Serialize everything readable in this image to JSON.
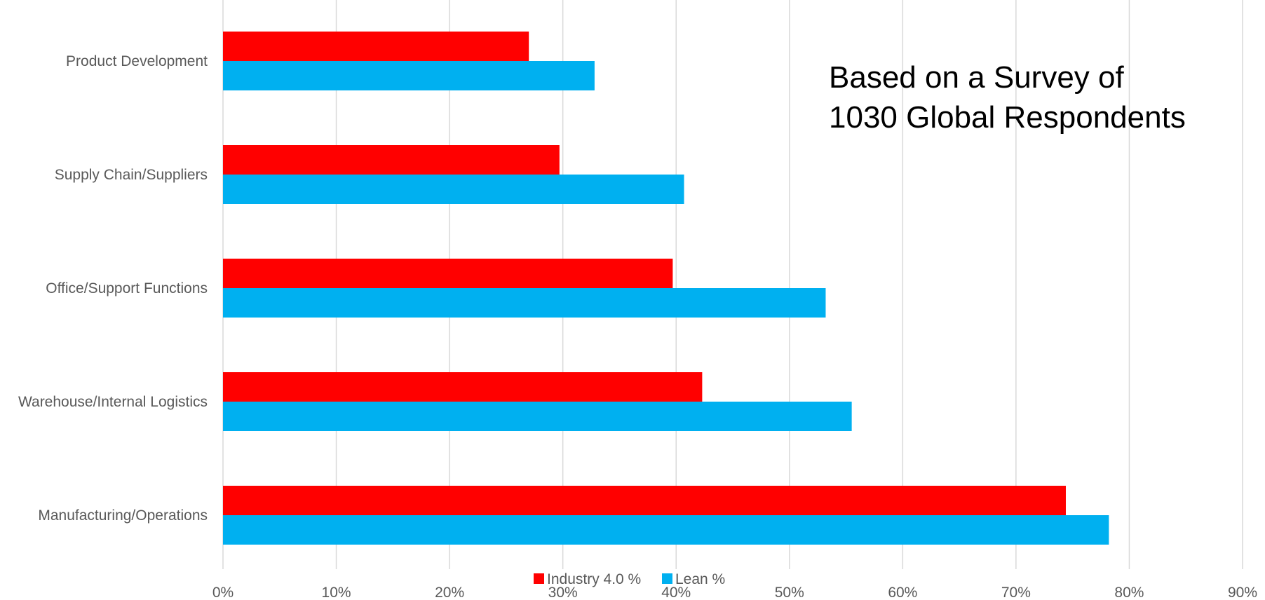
{
  "chart_data": {
    "type": "bar",
    "orientation": "horizontal",
    "categories": [
      "Product Development",
      "Supply Chain/Suppliers",
      "Office/Support Functions",
      "Warehouse/Internal Logistics",
      "Manufacturing/Operations"
    ],
    "series": [
      {
        "name": "Industry 4.0 %",
        "color": "#ff0000",
        "values": [
          27,
          29.7,
          39.7,
          42.3,
          74.4
        ]
      },
      {
        "name": "Lean %",
        "color": "#00b0f0",
        "values": [
          32.8,
          40.7,
          53.2,
          55.5,
          78.2
        ]
      }
    ],
    "xlim": [
      0,
      90
    ],
    "xticks": [
      "0%",
      "10%",
      "20%",
      "30%",
      "40%",
      "50%",
      "60%",
      "70%",
      "80%",
      "90%"
    ],
    "grid": true,
    "legend": "bottom",
    "annotation": [
      "Based on a Survey of",
      "1030 Global Respondents"
    ]
  }
}
